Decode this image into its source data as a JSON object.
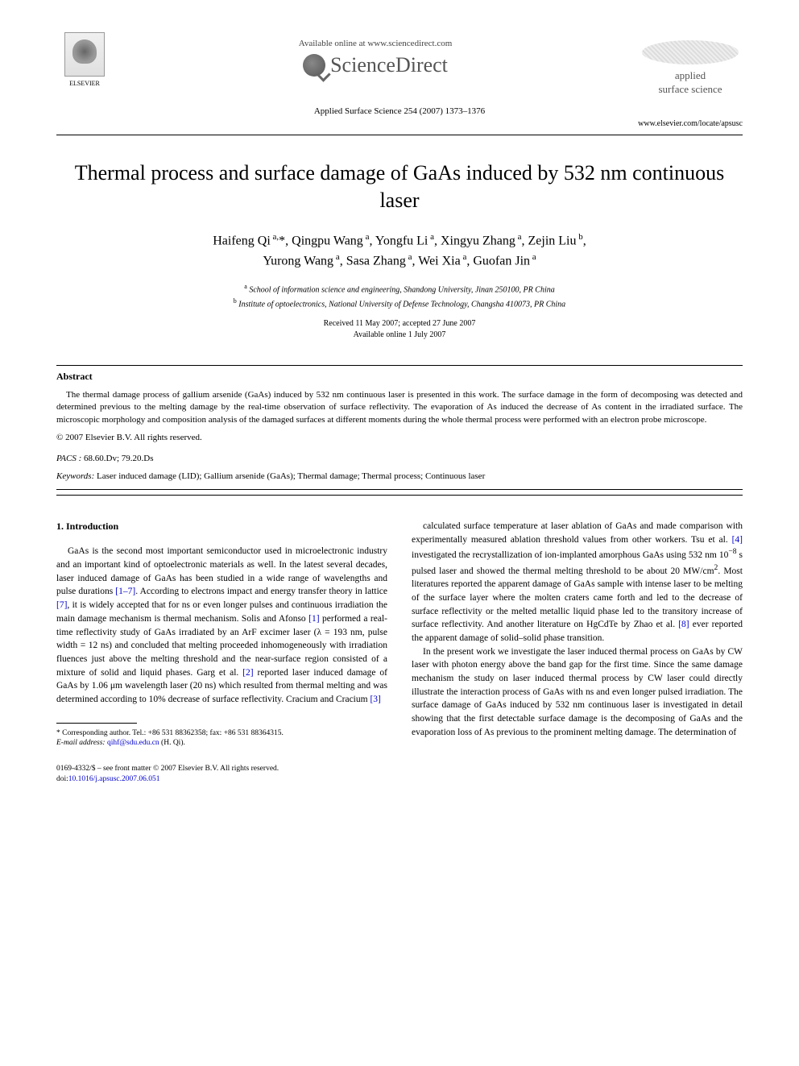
{
  "header": {
    "publisher": "ELSEVIER",
    "available_online": "Available online at www.sciencedirect.com",
    "portal_name": "ScienceDirect",
    "citation": "Applied Surface Science 254 (2007) 1373–1376",
    "journal_name_line1": "applied",
    "journal_name_line2": "surface science",
    "journal_url": "www.elsevier.com/locate/apsusc"
  },
  "title": "Thermal process and surface damage of GaAs induced by 532 nm continuous laser",
  "authors": "Haifeng Qi a,*, Qingpu Wang a, Yongfu Li a, Xingyu Zhang a, Zejin Liu b, Yurong Wang a, Sasa Zhang a, Wei Xia a, Guofan Jin a",
  "affiliations": {
    "a": "School of information science and engineering, Shandong University, Jinan 250100, PR China",
    "b": "Institute of optoelectronics, National University of Defense Technology, Changsha 410073, PR China"
  },
  "dates": {
    "received_accepted": "Received 11 May 2007; accepted 27 June 2007",
    "online": "Available online 1 July 2007"
  },
  "abstract": {
    "heading": "Abstract",
    "text": "The thermal damage process of gallium arsenide (GaAs) induced by 532 nm continuous laser is presented in this work. The surface damage in the form of decomposing was detected and determined previous to the melting damage by the real-time observation of surface reflectivity. The evaporation of As induced the decrease of As content in the irradiated surface. The microscopic morphology and composition analysis of the damaged surfaces at different moments during the whole thermal process were performed with an electron probe microscope.",
    "copyright": "© 2007 Elsevier B.V. All rights reserved."
  },
  "pacs": {
    "label": "PACS :",
    "values": "68.60.Dv; 79.20.Ds"
  },
  "keywords": {
    "label": "Keywords:",
    "values": "Laser induced damage (LID); Gallium arsenide (GaAs); Thermal damage; Thermal process; Continuous laser"
  },
  "section1": {
    "heading": "1. Introduction",
    "col1": "GaAs is the second most important semiconductor used in microelectronic industry and an important kind of optoelectronic materials as well. In the latest several decades, laser induced damage of GaAs has been studied in a wide range of wavelengths and pulse durations [1–7]. According to electrons impact and energy transfer theory in lattice [7], it is widely accepted that for ns or even longer pulses and continuous irradiation the main damage mechanism is thermal mechanism. Solis and Afonso [1] performed a real-time reflectivity study of GaAs irradiated by an ArF excimer laser (λ = 193 nm, pulse width = 12 ns) and concluded that melting proceeded inhomogeneously with irradiation fluences just above the melting threshold and the near-surface region consisted of a mixture of solid and liquid phases. Garg et al. [2] reported laser induced damage of GaAs by 1.06 μm wavelength laser (20 ns) which resulted from thermal melting and was determined according to 10% decrease of surface reflectivity. Cracium and Cracium [3]",
    "col2_p1": "calculated surface temperature at laser ablation of GaAs and made comparison with experimentally measured ablation threshold values from other workers. Tsu et al. [4] investigated the recrystallization of ion-implanted amorphous GaAs using 532 nm 10⁻⁸ s pulsed laser and showed the thermal melting threshold to be about 20 MW/cm². Most literatures reported the apparent damage of GaAs sample with intense laser to be melting of the surface layer where the molten craters came forth and led to the decrease of surface reflectivity or the melted metallic liquid phase led to the transitory increase of surface reflectivity. And another literature on HgCdTe by Zhao et al. [8] ever reported the apparent damage of solid–solid phase transition.",
    "col2_p2": "In the present work we investigate the laser induced thermal process on GaAs by CW laser with photon energy above the band gap for the first time. Since the same damage mechanism the study on laser induced thermal process by CW laser could directly illustrate the interaction process of GaAs with ns and even longer pulsed irradiation. The surface damage of GaAs induced by 532 nm continuous laser is investigated in detail showing that the first detectable surface damage is the decomposing of GaAs and the evaporation loss of As previous to the prominent melting damage. The determination of"
  },
  "footnote": {
    "corresponding": "* Corresponding author. Tel.: +86 531 88362358; fax: +86 531 88364315.",
    "email_label": "E-mail address:",
    "email": "qihf@sdu.edu.cn",
    "email_name": "(H. Qi)."
  },
  "footer": {
    "issn": "0169-4332/$ – see front matter © 2007 Elsevier B.V. All rights reserved.",
    "doi_label": "doi:",
    "doi": "10.1016/j.apsusc.2007.06.051"
  },
  "refs": {
    "r1_7": "[1–7]",
    "r7": "[7]",
    "r1": "[1]",
    "r2": "[2]",
    "r3": "[3]",
    "r4": "[4]",
    "r8": "[8]"
  }
}
